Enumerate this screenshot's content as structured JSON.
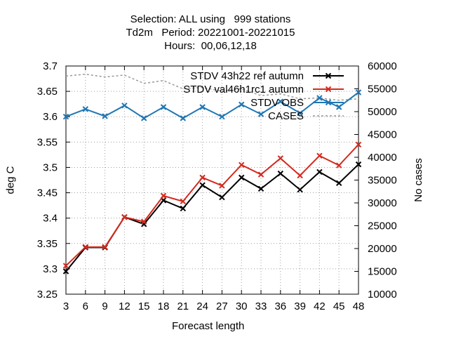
{
  "chart_data": {
    "type": "line",
    "title_lines": [
      "Selection: ALL using   999 stations",
      "Td2m   Period: 20221001-20221015",
      "Hours:  00,06,12,18"
    ],
    "xlabel": "Forecast length",
    "ylabel": "deg C",
    "y2label": "No cases",
    "x": [
      3,
      6,
      9,
      12,
      15,
      18,
      21,
      24,
      27,
      30,
      33,
      36,
      39,
      42,
      45,
      48
    ],
    "x_ticks": [
      "3",
      "6",
      "9",
      "12",
      "15",
      "18",
      "21",
      "24",
      "27",
      "30",
      "33",
      "36",
      "39",
      "42",
      "45",
      "48"
    ],
    "ylim": [
      3.25,
      3.7
    ],
    "y_ticks": [
      "3.25",
      "3.3",
      "3.35",
      "3.4",
      "3.45",
      "3.5",
      "3.55",
      "3.6",
      "3.65",
      "3.7"
    ],
    "y2lim": [
      10000,
      60000
    ],
    "y2_ticks": [
      "10000",
      "15000",
      "20000",
      "25000",
      "30000",
      "35000",
      "40000",
      "45000",
      "50000",
      "55000",
      "60000"
    ],
    "grid": true,
    "legend_position": "top-right",
    "series": [
      {
        "name": "STDV 43h22_ref_autumn",
        "legend_label": "STDV 43h22 ref autumn",
        "color": "#000000",
        "marker": "x",
        "axis": "y1",
        "values": [
          3.295,
          3.342,
          3.342,
          3.402,
          3.388,
          3.435,
          3.419,
          3.465,
          3.441,
          3.48,
          3.458,
          3.488,
          3.456,
          3.491,
          3.469,
          3.506
        ]
      },
      {
        "name": "STDV val46h1rc1_autumn",
        "legend_label": "STDV val46h1rc1 autumn",
        "color": "#d42a1e",
        "marker": "x",
        "axis": "y1",
        "values": [
          3.306,
          3.343,
          3.343,
          3.402,
          3.393,
          3.444,
          3.433,
          3.48,
          3.464,
          3.505,
          3.486,
          3.518,
          3.484,
          3.523,
          3.504,
          3.545
        ]
      },
      {
        "name": "STDV OBS",
        "legend_label": "STDV OBS",
        "color": "#1f77b4",
        "marker": "x",
        "axis": "y1",
        "values": [
          3.6,
          3.615,
          3.601,
          3.622,
          3.597,
          3.619,
          3.597,
          3.619,
          3.6,
          3.624,
          3.605,
          3.63,
          3.607,
          3.637,
          3.619,
          3.648
        ]
      },
      {
        "name": "CASES",
        "legend_label": "CASES",
        "color": "#999999",
        "marker": "none",
        "dashed": true,
        "axis": "y2",
        "values": [
          57800,
          58200,
          57600,
          58000,
          56200,
          56800,
          55000,
          55300,
          54500,
          55000,
          53500,
          53900,
          52800,
          53000,
          52500,
          52800
        ]
      }
    ]
  }
}
